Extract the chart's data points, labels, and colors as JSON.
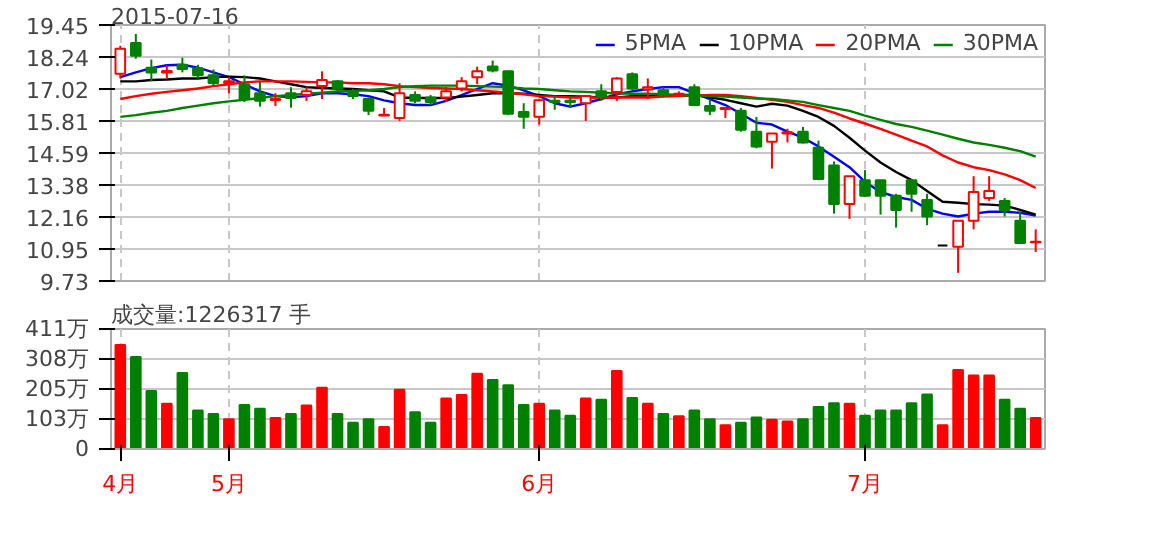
{
  "chart_data": [
    {
      "type": "candlestick",
      "title": "2015-07-16",
      "categories": [
        null,
        null,
        null,
        null,
        null,
        null,
        null,
        null,
        null,
        null,
        null,
        null,
        null,
        null,
        null,
        null,
        null,
        null,
        null,
        null,
        null,
        null,
        null,
        null,
        null,
        null,
        null,
        null,
        null,
        null,
        null,
        null,
        null,
        null,
        null,
        null,
        null,
        null,
        null,
        null,
        null,
        null,
        null,
        null,
        null,
        null,
        null,
        null,
        null,
        null,
        null,
        null,
        null,
        null,
        null,
        null,
        null,
        null,
        null,
        null
      ],
      "ohlc": [
        [
          17.6,
          18.66,
          17.42,
          18.55
        ],
        [
          18.77,
          19.11,
          18.17,
          18.28
        ],
        [
          17.83,
          18.14,
          17.31,
          17.65
        ],
        [
          17.65,
          17.92,
          17.42,
          17.7
        ],
        [
          17.94,
          18.21,
          17.65,
          17.78
        ],
        [
          17.81,
          17.94,
          17.42,
          17.54
        ],
        [
          17.54,
          17.76,
          17.15,
          17.25
        ],
        [
          17.25,
          17.47,
          16.86,
          17.31
        ],
        [
          17.2,
          17.54,
          16.53,
          16.64
        ],
        [
          16.86,
          17.31,
          16.35,
          16.57
        ],
        [
          16.6,
          16.86,
          16.37,
          16.64
        ],
        [
          16.86,
          17.09,
          16.31,
          16.68
        ],
        [
          16.79,
          17.09,
          16.57,
          16.93
        ],
        [
          17.13,
          17.69,
          16.64,
          17.36
        ],
        [
          17.31,
          17.36,
          16.93,
          17.04
        ],
        [
          16.93,
          17.02,
          16.64,
          16.75
        ],
        [
          16.64,
          16.71,
          16.03,
          16.19
        ],
        [
          16.01,
          16.3,
          15.99,
          16.04
        ],
        [
          15.92,
          17.24,
          15.81,
          16.86
        ],
        [
          16.79,
          16.93,
          16.48,
          16.57
        ],
        [
          16.7,
          16.79,
          16.41,
          16.53
        ],
        [
          16.7,
          17.09,
          16.53,
          16.93
        ],
        [
          17.04,
          17.47,
          16.93,
          17.31
        ],
        [
          17.47,
          17.87,
          17.2,
          17.69
        ],
        [
          17.87,
          18.1,
          17.65,
          17.72
        ],
        [
          17.69,
          17.72,
          16.03,
          16.08
        ],
        [
          16.15,
          16.48,
          15.51,
          15.97
        ],
        [
          15.97,
          16.64,
          15.67,
          16.59
        ],
        [
          16.57,
          16.75,
          16.23,
          16.53
        ],
        [
          16.57,
          16.75,
          16.3,
          16.53
        ],
        [
          16.48,
          16.79,
          15.81,
          16.75
        ],
        [
          16.93,
          17.2,
          16.57,
          16.75
        ],
        [
          16.91,
          17.47,
          16.57,
          17.42
        ],
        [
          17.58,
          17.65,
          16.97,
          17.04
        ],
        [
          17.0,
          17.42,
          16.64,
          17.09
        ],
        [
          16.97,
          17.09,
          16.7,
          16.79
        ],
        [
          16.79,
          16.93,
          16.75,
          16.84
        ],
        [
          17.09,
          17.2,
          16.37,
          16.41
        ],
        [
          16.37,
          16.64,
          16.03,
          16.19
        ],
        [
          16.26,
          16.3,
          15.92,
          16.3
        ],
        [
          16.19,
          16.3,
          15.4,
          15.47
        ],
        [
          15.4,
          15.96,
          14.77,
          14.84
        ],
        [
          15.02,
          15.33,
          14.0,
          15.33
        ],
        [
          15.33,
          15.51,
          14.99,
          15.38
        ],
        [
          15.4,
          15.58,
          14.95,
          14.99
        ],
        [
          14.79,
          15.06,
          13.56,
          13.6
        ],
        [
          14.12,
          14.27,
          12.29,
          12.65
        ],
        [
          12.65,
          13.71,
          12.09,
          13.71
        ],
        [
          13.56,
          13.94,
          12.92,
          12.97
        ],
        [
          13.56,
          13.56,
          12.25,
          12.97
        ],
        [
          12.97,
          13.04,
          11.76,
          12.43
        ],
        [
          13.56,
          13.6,
          12.36,
          13.04
        ],
        [
          12.81,
          13.04,
          11.85,
          12.18
        ],
        [
          11.08,
          11.08,
          11.08,
          11.08
        ],
        [
          11.03,
          12.02,
          10.04,
          12.02
        ],
        [
          12.02,
          13.71,
          11.69,
          13.11
        ],
        [
          12.88,
          13.71,
          12.77,
          13.15
        ],
        [
          12.77,
          12.88,
          12.18,
          12.43
        ],
        [
          12.02,
          12.36,
          11.17,
          11.17
        ],
        [
          11.2,
          11.69,
          10.83,
          11.22
        ]
      ],
      "colors": [
        "#ff0000",
        "#008000",
        "#008000",
        "#ff0000",
        "#008000",
        "#008000",
        "#008000",
        "#ff0000",
        "#008000",
        "#008000",
        "#ff0000",
        "#008000",
        "#ff0000",
        "#ff0000",
        "#008000",
        "#008000",
        "#008000",
        "#ff0000",
        "#ff0000",
        "#008000",
        "#008000",
        "#ff0000",
        "#ff0000",
        "#ff0000",
        "#008000",
        "#008000",
        "#008000",
        "#ff0000",
        "#008000",
        "#008000",
        "#ff0000",
        "#008000",
        "#ff0000",
        "#008000",
        "#ff0000",
        "#008000",
        "#ff0000",
        "#008000",
        "#008000",
        "#ff0000",
        "#008000",
        "#008000",
        "#ff0000",
        "#ff0000",
        "#008000",
        "#008000",
        "#008000",
        "#ff0000",
        "#008000",
        "#008000",
        "#008000",
        "#008000",
        "#008000",
        "#000000",
        "#ff0000",
        "#ff0000",
        "#ff0000",
        "#008000",
        "#008000",
        "#ff0000"
      ],
      "series": [
        {
          "name": "5PMA",
          "type": "line",
          "color": "#0000ff",
          "values": [
            17.47,
            17.65,
            17.81,
            17.92,
            17.94,
            17.83,
            17.65,
            17.47,
            17.2,
            16.93,
            16.75,
            16.7,
            16.75,
            16.86,
            16.86,
            16.82,
            16.75,
            16.59,
            16.48,
            16.41,
            16.41,
            16.57,
            16.79,
            17.02,
            17.24,
            17.15,
            16.97,
            16.75,
            16.48,
            16.35,
            16.48,
            16.64,
            16.82,
            16.93,
            17.02,
            17.09,
            17.09,
            16.86,
            16.64,
            16.41,
            16.08,
            15.74,
            15.67,
            15.4,
            15.17,
            14.84,
            14.45,
            14.05,
            13.49,
            13.11,
            12.92,
            12.81,
            12.47,
            12.29,
            12.18,
            12.29,
            12.36,
            12.36,
            12.32,
            12.21
          ]
        },
        {
          "name": "10PMA",
          "type": "line",
          "color": "#000000",
          "values": [
            17.31,
            17.31,
            17.36,
            17.38,
            17.42,
            17.42,
            17.47,
            17.49,
            17.47,
            17.42,
            17.31,
            17.2,
            17.09,
            17.06,
            17.04,
            17.02,
            16.97,
            16.93,
            16.7,
            16.68,
            16.68,
            16.68,
            16.73,
            16.79,
            16.86,
            16.86,
            16.84,
            16.79,
            16.75,
            16.75,
            16.73,
            16.7,
            16.7,
            16.75,
            16.75,
            16.77,
            16.79,
            16.79,
            16.7,
            16.61,
            16.48,
            16.35,
            16.46,
            16.39,
            16.19,
            15.96,
            15.62,
            15.17,
            14.68,
            14.23,
            13.87,
            13.56,
            13.15,
            12.74,
            12.7,
            12.65,
            12.63,
            12.59,
            12.43,
            12.25
          ]
        },
        {
          "name": "20PMA",
          "type": "line",
          "color": "#ff0000",
          "values": [
            16.64,
            16.75,
            16.84,
            16.91,
            16.97,
            17.04,
            17.13,
            17.2,
            17.27,
            17.31,
            17.31,
            17.31,
            17.29,
            17.27,
            17.27,
            17.24,
            17.24,
            17.2,
            17.13,
            17.09,
            17.06,
            17.04,
            17.02,
            16.97,
            16.93,
            16.88,
            16.82,
            16.75,
            16.73,
            16.7,
            16.7,
            16.7,
            16.7,
            16.7,
            16.7,
            16.73,
            16.75,
            16.77,
            16.79,
            16.79,
            16.75,
            16.68,
            16.61,
            16.53,
            16.41,
            16.3,
            16.12,
            15.9,
            15.71,
            15.51,
            15.29,
            15.06,
            14.84,
            14.5,
            14.23,
            14.05,
            13.94,
            13.78,
            13.56,
            13.26
          ]
        },
        {
          "name": "30PMA",
          "type": "line",
          "color": "#008000",
          "values": [
            15.96,
            16.03,
            16.12,
            16.19,
            16.3,
            16.39,
            16.48,
            16.55,
            16.61,
            16.68,
            16.75,
            16.79,
            16.84,
            16.88,
            16.93,
            16.95,
            16.97,
            17.02,
            17.09,
            17.13,
            17.15,
            17.15,
            17.15,
            17.13,
            17.11,
            17.09,
            17.04,
            17.02,
            16.97,
            16.93,
            16.91,
            16.88,
            16.86,
            16.84,
            16.84,
            16.82,
            16.79,
            16.77,
            16.75,
            16.73,
            16.7,
            16.66,
            16.64,
            16.59,
            16.53,
            16.41,
            16.3,
            16.19,
            16.01,
            15.85,
            15.69,
            15.58,
            15.44,
            15.29,
            15.13,
            14.99,
            14.9,
            14.79,
            14.66,
            14.45
          ]
        }
      ],
      "ylim": [
        9.73,
        19.45
      ],
      "yticks": [
        9.73,
        10.95,
        12.16,
        13.38,
        14.59,
        15.81,
        17.02,
        18.24,
        19.45
      ],
      "grid": true,
      "legend": "top right",
      "tick_labels": "y"
    },
    {
      "type": "bar",
      "title": "成交量:1226317 手",
      "categories": [
        "4月",
        null,
        null,
        null,
        null,
        null,
        null,
        "5月",
        null,
        null,
        null,
        null,
        null,
        null,
        null,
        null,
        null,
        null,
        null,
        null,
        null,
        null,
        null,
        null,
        null,
        null,
        null,
        "6月",
        null,
        null,
        null,
        null,
        null,
        null,
        null,
        null,
        null,
        null,
        null,
        null,
        null,
        null,
        null,
        null,
        null,
        null,
        null,
        null,
        "7月",
        null,
        null,
        null,
        null,
        null,
        null,
        null,
        null,
        null,
        null,
        null
      ],
      "values": [
        356,
        315,
        199,
        155,
        260,
        132,
        120,
        102,
        151,
        138,
        106,
        120,
        149,
        210,
        120,
        90,
        102,
        75,
        203,
        126,
        90,
        173,
        185,
        258,
        236,
        218,
        151,
        155,
        132,
        114,
        173,
        169,
        267,
        175,
        155,
        120,
        112,
        132,
        102,
        81,
        90,
        108,
        100,
        94,
        102,
        144,
        157,
        155,
        114,
        132,
        132,
        157,
        187,
        81,
        271,
        252,
        252,
        169,
        138,
        106
      ],
      "colors": [
        "#ff0000",
        "#008000",
        "#008000",
        "#ff0000",
        "#008000",
        "#008000",
        "#008000",
        "#ff0000",
        "#008000",
        "#008000",
        "#ff0000",
        "#008000",
        "#ff0000",
        "#ff0000",
        "#008000",
        "#008000",
        "#008000",
        "#ff0000",
        "#ff0000",
        "#008000",
        "#008000",
        "#ff0000",
        "#ff0000",
        "#ff0000",
        "#008000",
        "#008000",
        "#008000",
        "#ff0000",
        "#008000",
        "#008000",
        "#ff0000",
        "#008000",
        "#ff0000",
        "#008000",
        "#ff0000",
        "#008000",
        "#ff0000",
        "#008000",
        "#008000",
        "#ff0000",
        "#008000",
        "#008000",
        "#ff0000",
        "#ff0000",
        "#008000",
        "#008000",
        "#008000",
        "#ff0000",
        "#008000",
        "#008000",
        "#008000",
        "#008000",
        "#008000",
        "#ff0000",
        "#ff0000",
        "#ff0000",
        "#ff0000",
        "#008000",
        "#008000",
        "#ff0000"
      ],
      "ylim": [
        0,
        411
      ],
      "yticks": [
        0,
        {
          "value": 103,
          "label": "103万"
        },
        {
          "value": 205,
          "label": "205万"
        },
        {
          "value": 308,
          "label": "308万"
        },
        {
          "value": 411,
          "label": "411万"
        }
      ],
      "grid": true
    }
  ]
}
